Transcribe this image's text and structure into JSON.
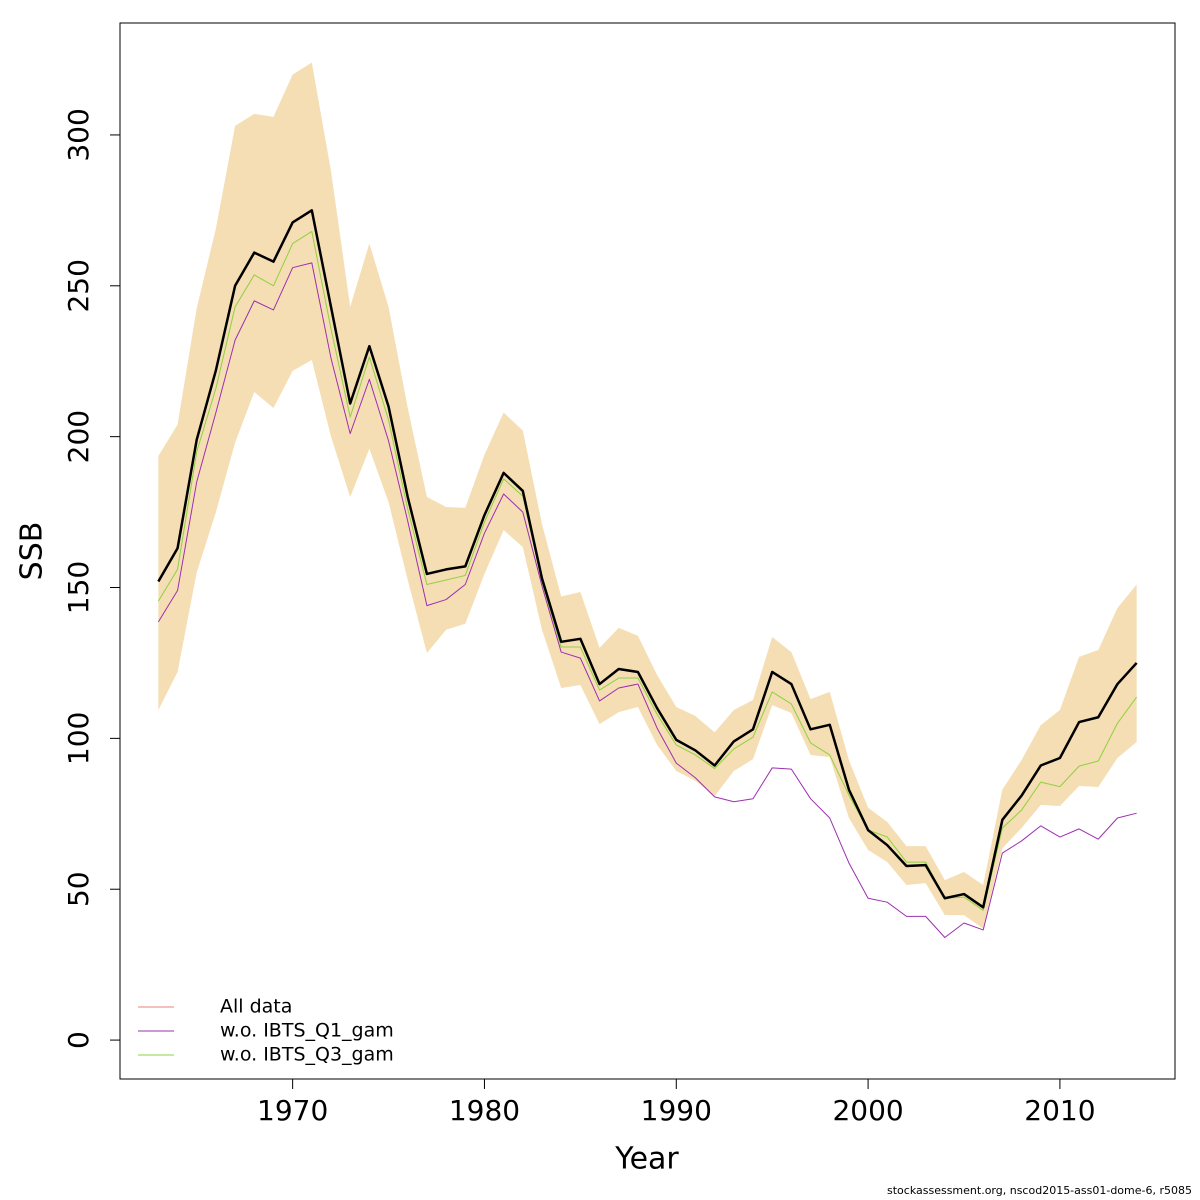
{
  "chart_data": {
    "type": "line",
    "xlabel": "Year",
    "ylabel": "SSB",
    "footnote": "stockassessment.org, nscod2015-ass01-dome-6, r5085",
    "x": [
      1963,
      1964,
      1965,
      1966,
      1967,
      1968,
      1969,
      1970,
      1971,
      1972,
      1973,
      1974,
      1975,
      1976,
      1977,
      1978,
      1979,
      1980,
      1981,
      1982,
      1983,
      1984,
      1985,
      1986,
      1987,
      1988,
      1989,
      1990,
      1991,
      1992,
      1993,
      1994,
      1995,
      1996,
      1997,
      1998,
      1999,
      2000,
      2001,
      2002,
      2003,
      2004,
      2005,
      2006,
      2007,
      2008,
      2009,
      2010,
      2011,
      2012,
      2013,
      2014
    ],
    "band": {
      "color": "#f5deb3",
      "upper": [
        193.6,
        204,
        242.6,
        269,
        303,
        307,
        306,
        320,
        324,
        288,
        243,
        264,
        243,
        209.5,
        180,
        176.7,
        176.4,
        194,
        208,
        202,
        171,
        147,
        148.5,
        130,
        136.6,
        134,
        121,
        110.4,
        107.4,
        102,
        109.4,
        112.7,
        133.6,
        128.6,
        113,
        115.4,
        92.8,
        77,
        72.3,
        64.3,
        64.3,
        53,
        55.7,
        51.4,
        83,
        92.8,
        104.4,
        109.4,
        127,
        129.3,
        143.2,
        151
      ],
      "lower": [
        109.4,
        122,
        155,
        175,
        198,
        214.8,
        209.5,
        221.8,
        225.4,
        200,
        180,
        196,
        178.3,
        152.5,
        128.3,
        136,
        138,
        154.5,
        169,
        163.4,
        136,
        116.7,
        117.7,
        104.7,
        108.7,
        110.4,
        97.8,
        89.2,
        85.9,
        80.9,
        89.2,
        93.1,
        111,
        108.4,
        94.5,
        93.8,
        73.6,
        63,
        59,
        51.4,
        52,
        41.4,
        41.4,
        37,
        63.6,
        70.3,
        77.9,
        77.6,
        84.2,
        83.9,
        93.5,
        98.8
      ]
    },
    "series": [
      {
        "name": "All data",
        "color": "#000000",
        "legend_color": "#e8837f",
        "line_width": 2.5,
        "values": [
          152,
          163,
          199,
          222,
          250,
          261,
          258,
          271,
          275,
          243,
          211,
          230,
          210,
          180,
          154.5,
          156,
          157,
          174,
          188,
          182,
          153,
          132,
          133,
          118,
          123,
          122,
          110,
          99.5,
          96,
          91,
          99,
          103,
          122,
          118,
          103,
          104.5,
          83,
          69.6,
          64.6,
          57.7,
          58,
          47,
          48.4,
          44,
          73,
          81,
          91,
          93.5,
          105.4,
          107,
          118,
          125
        ]
      },
      {
        "name": "w.o. IBTS_Q1_gam",
        "color": "#9b30b0",
        "legend_color": "#9b30b0",
        "line_width": 1,
        "values": [
          138.6,
          149,
          185,
          208,
          232,
          245,
          242,
          256,
          257.6,
          226,
          201,
          219,
          198.6,
          172,
          144,
          146,
          151,
          168,
          181,
          175,
          150.5,
          128.6,
          126.6,
          112.4,
          116.7,
          118,
          103.4,
          91.8,
          86.9,
          80.6,
          79,
          80,
          90.2,
          89.8,
          80,
          73.6,
          58.7,
          47,
          45.7,
          41,
          41,
          34,
          38.8,
          36.5,
          62,
          66,
          71,
          67.3,
          70,
          66.6,
          73.6,
          75.2
        ]
      },
      {
        "name": "w.o. IBTS_Q3_gam",
        "color": "#8fd13f",
        "legend_color": "#8fd13f",
        "line_width": 1,
        "values": [
          145.5,
          156,
          195,
          216,
          243,
          253.6,
          250,
          264,
          268,
          235.7,
          206.5,
          226.4,
          205.5,
          176,
          151,
          152.5,
          154,
          171.7,
          186,
          180.3,
          151.8,
          130.3,
          130.3,
          116,
          120,
          120,
          108,
          97.8,
          94.5,
          90,
          96.5,
          100.4,
          115.4,
          111.4,
          98.5,
          94.5,
          81.2,
          69.6,
          67.3,
          59,
          59,
          47,
          47.4,
          43,
          70.3,
          76.2,
          85.5,
          84,
          90.8,
          92.5,
          105,
          113.7
        ]
      }
    ],
    "xlim": [
      1961,
      2016
    ],
    "ylim": [
      -12.9,
      337.1
    ],
    "xticks": [
      1970,
      1980,
      1990,
      2000,
      2010
    ],
    "yticks": [
      0,
      50,
      100,
      150,
      200,
      250,
      300
    ],
    "legend": "bottom-left"
  }
}
